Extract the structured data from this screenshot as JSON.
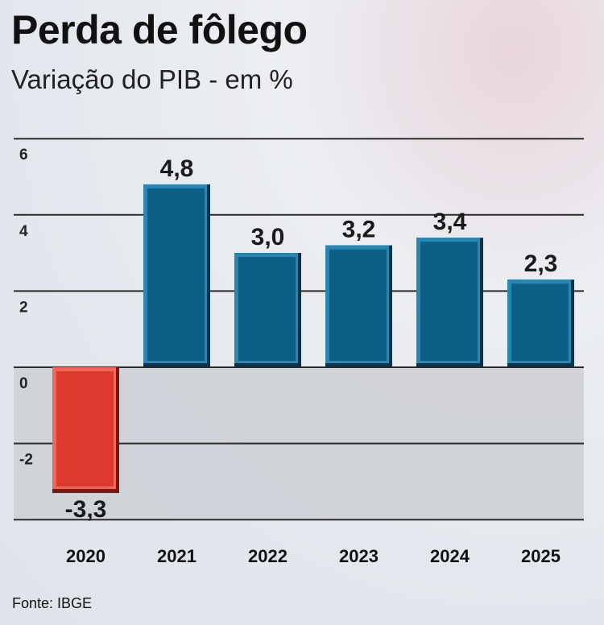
{
  "title": "Perda de fôlego",
  "subtitle": "Variação do PIB - em %",
  "source": "Fonte: IBGE",
  "chart_data": {
    "type": "bar",
    "title": "Perda de fôlego",
    "subtitle": "Variação do PIB - em %",
    "categories": [
      "2020",
      "2021",
      "2022",
      "2023",
      "2024",
      "2025"
    ],
    "values": [
      -3.3,
      4.8,
      3.0,
      3.2,
      3.4,
      2.3
    ],
    "value_labels": [
      "-3,3",
      "4,8",
      "3,0",
      "3,2",
      "3,4",
      "2,3"
    ],
    "yticks": [
      6,
      4,
      2,
      0,
      -2
    ],
    "ylim": [
      -4,
      6
    ],
    "grid": true,
    "colors": {
      "positive": "#0e5f86",
      "negative": "#dd3a2e",
      "negative_zone": "#c9ccd1"
    }
  }
}
